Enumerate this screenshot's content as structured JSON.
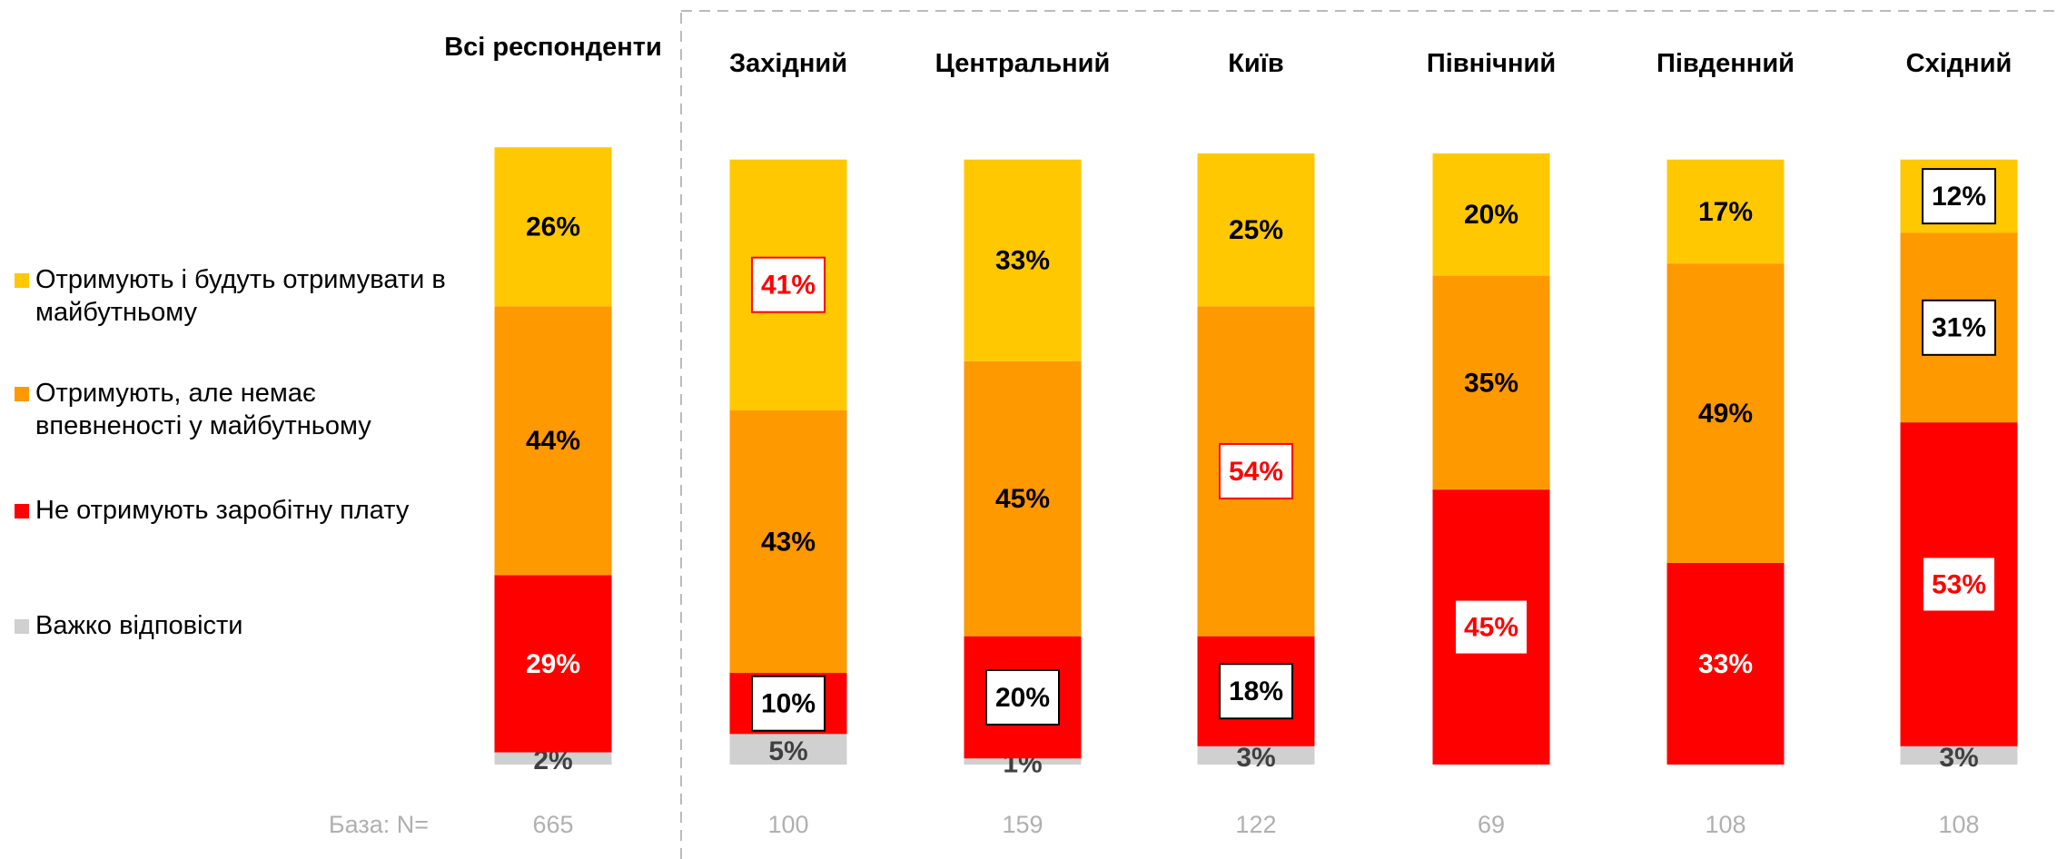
{
  "chart_data": {
    "type": "stacked_bar",
    "categories": [
      "Всі респонденти",
      "Західний",
      "Центральний",
      "Київ",
      "Північний",
      "Південний",
      "Східний"
    ],
    "series": [
      {
        "name": "Важко відповісти",
        "color": "#d0d0d0",
        "values": [
          2,
          5,
          1,
          3,
          null,
          null,
          3
        ],
        "value_labels": [
          "2%",
          "5%",
          "1%",
          "3%",
          null,
          null,
          "3%"
        ],
        "label_box": [
          null,
          null,
          null,
          null,
          null,
          null,
          null
        ]
      },
      {
        "name": "Не отримують заробітну плату",
        "color": "#ff0000",
        "values": [
          29,
          10,
          20,
          18,
          45,
          33,
          53
        ],
        "value_labels": [
          "29%",
          "10%",
          "20%",
          "18%",
          "45%",
          "33%",
          "53%"
        ],
        "label_box": [
          null,
          "black",
          "black",
          "black",
          "red",
          null,
          "red"
        ]
      },
      {
        "name": "Отримують, але немає впевненості у майбутньому",
        "color": "#ff9900",
        "values": [
          44,
          43,
          45,
          54,
          35,
          49,
          31
        ],
        "value_labels": [
          "44%",
          "43%",
          "45%",
          "54%",
          "35%",
          "49%",
          "31%"
        ],
        "label_box": [
          null,
          null,
          null,
          "red",
          null,
          null,
          "black"
        ]
      },
      {
        "name": "Отримують і будуть отримувати в майбутньому",
        "color": "#ffc800",
        "values": [
          26,
          41,
          33,
          25,
          20,
          17,
          12
        ],
        "value_labels": [
          "26%",
          "41%",
          "33%",
          "25%",
          "20%",
          "17%",
          "12%"
        ],
        "label_box": [
          null,
          "red",
          null,
          null,
          null,
          null,
          "black"
        ]
      }
    ],
    "ylim": [
      0,
      100
    ],
    "base_label": "База: N=",
    "base_n": [
      665,
      100,
      159,
      122,
      69,
      108,
      108
    ]
  }
}
